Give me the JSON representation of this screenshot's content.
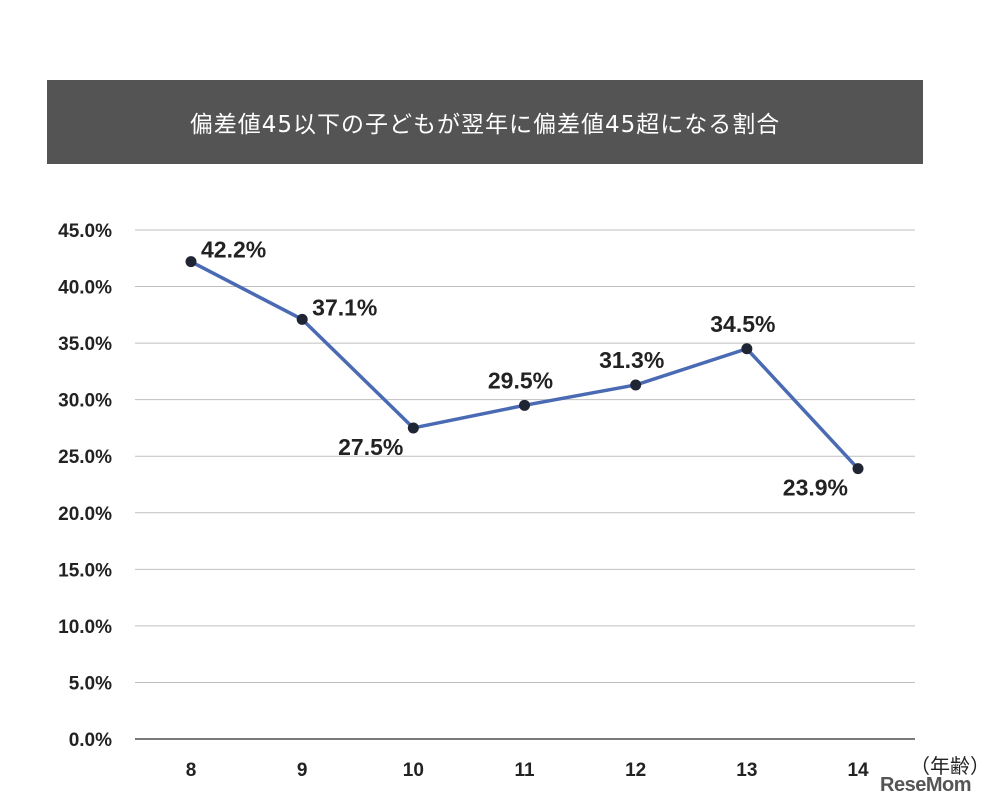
{
  "colors": {
    "title_bg": "#545454",
    "title_text": "#ffffff",
    "line": "#4a6ab3",
    "marker": "#1f2533",
    "grid": "#bfbfbf",
    "axis": "#4d4d4d"
  },
  "chart_data": {
    "type": "line",
    "title": "偏差値45以下の子どもが翌年に偏差値45超になる割合",
    "xlabel": "（年齢）",
    "ylabel": "",
    "categories": [
      "8",
      "9",
      "10",
      "11",
      "12",
      "13",
      "14"
    ],
    "ylim": [
      0,
      45
    ],
    "y_ticks": [
      0,
      5,
      10,
      15,
      20,
      25,
      30,
      35,
      40,
      45
    ],
    "y_tick_labels": [
      "0.0%",
      "5.0%",
      "10.0%",
      "15.0%",
      "20.0%",
      "25.0%",
      "30.0%",
      "35.0%",
      "40.0%",
      "45.0%"
    ],
    "grid": true,
    "legend": "none",
    "series": [
      {
        "values": [
          42.2,
          37.1,
          27.5,
          29.5,
          31.3,
          34.5,
          23.9
        ],
        "data_labels": [
          "42.2%",
          "37.1%",
          "27.5%",
          "29.5%",
          "31.3%",
          "34.5%",
          "23.9%"
        ],
        "label_positions": [
          "right",
          "right",
          "below-left",
          "above",
          "above",
          "above",
          "below-left"
        ]
      }
    ]
  },
  "watermark": "ReseMom"
}
